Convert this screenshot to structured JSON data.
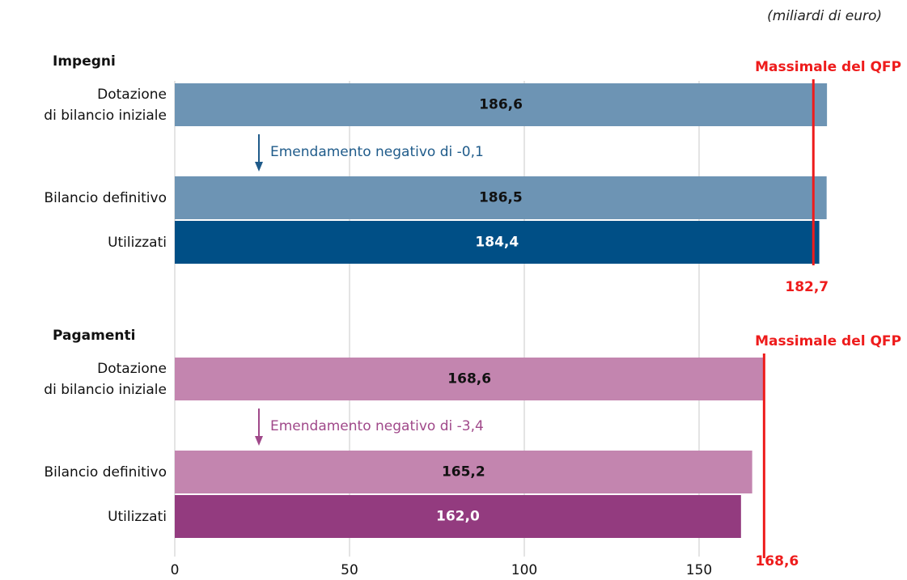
{
  "chart_data": {
    "type": "bar",
    "note": "(miliardi di euro)",
    "xlim": [
      0,
      200
    ],
    "xticks": [
      0,
      50,
      100,
      150
    ],
    "grid": true,
    "groups": [
      {
        "title": "Impegni",
        "categories": [
          "Dotazione\ndi bilancio iniziale",
          "Bilancio definitivo",
          "Utilizzati"
        ],
        "values": [
          186.6,
          186.5,
          184.4
        ],
        "value_labels": [
          "186,6",
          "186,5",
          "184,4"
        ],
        "colors": [
          "#6d94b4",
          "#6d94b4",
          "#004f86"
        ],
        "label_colors": [
          "#111111",
          "#111111",
          "#ffffff"
        ],
        "amendment": "Emendamento negativo di -0,1",
        "amendment_color": "#1f5b8a",
        "ceiling": {
          "label": "Massimale del QFP",
          "value": 182.7,
          "value_label": "182,7",
          "color": "#ee1c1c"
        }
      },
      {
        "title": "Pagamenti",
        "categories": [
          "Dotazione\ndi bilancio iniziale",
          "Bilancio definitivo",
          "Utilizzati"
        ],
        "values": [
          168.6,
          165.2,
          162.0
        ],
        "value_labels": [
          "168,6",
          "165,2",
          "162,0"
        ],
        "colors": [
          "#c385af",
          "#c385af",
          "#933b7f"
        ],
        "label_colors": [
          "#111111",
          "#111111",
          "#ffffff"
        ],
        "amendment": "Emendamento negativo di -3,4",
        "amendment_color": "#a0498a",
        "ceiling": {
          "label": "Massimale del QFP",
          "value": 168.6,
          "value_label": "168,6",
          "color": "#ee1c1c"
        }
      }
    ]
  }
}
